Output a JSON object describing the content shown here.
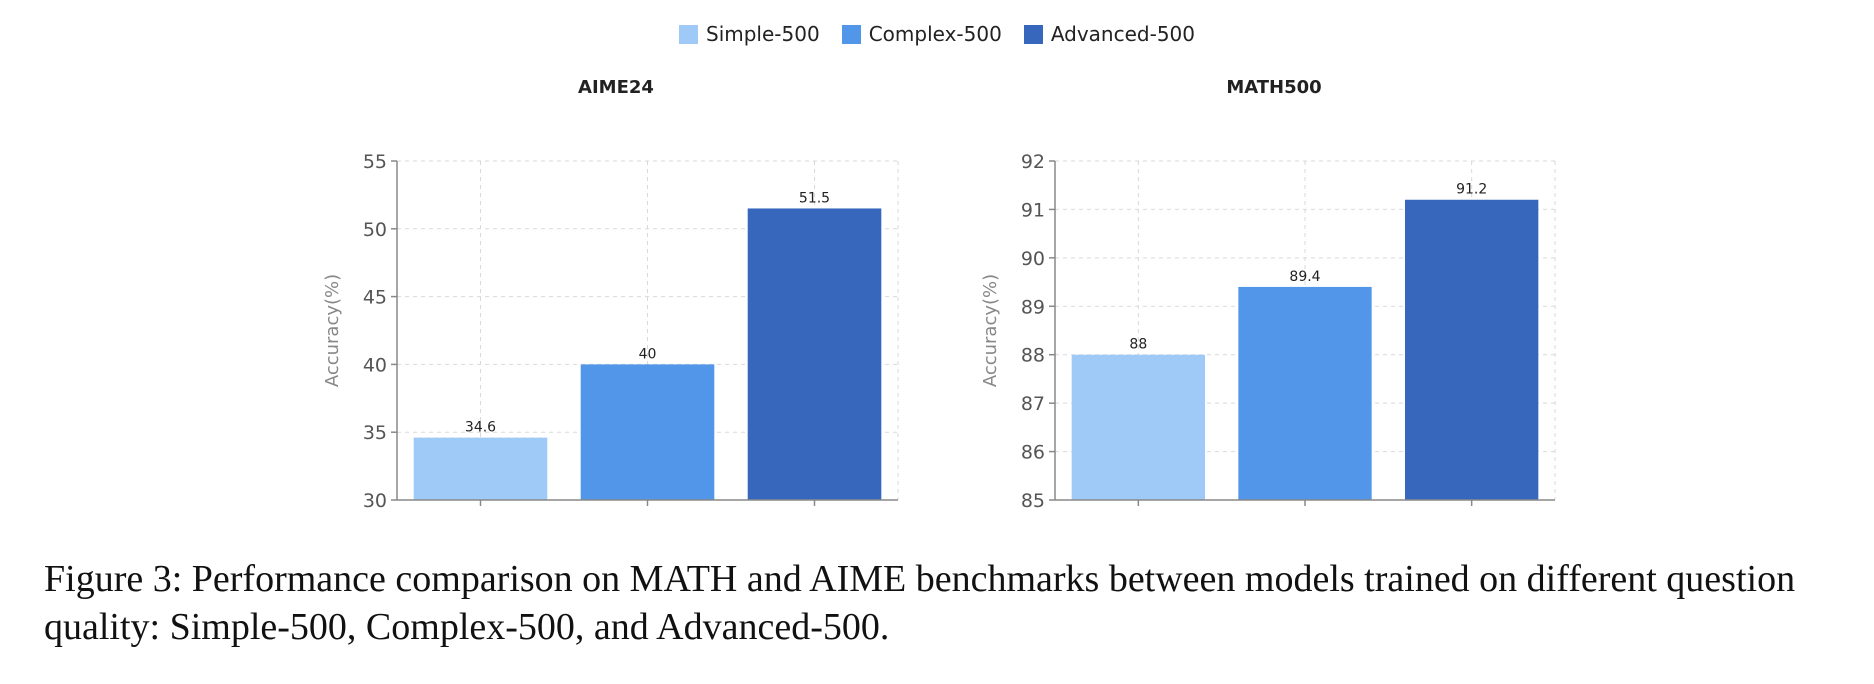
{
  "legend": {
    "items": [
      {
        "label": "Simple-500",
        "color": "#9fc9f6"
      },
      {
        "label": "Complex-500",
        "color": "#5196e9"
      },
      {
        "label": "Advanced-500",
        "color": "#3767bd"
      }
    ]
  },
  "chart_data": [
    {
      "type": "bar",
      "title": "AIME24",
      "ylabel": "Accuracy(%)",
      "xlabel": "",
      "ylim": [
        30,
        55
      ],
      "yticks": [
        30,
        35,
        40,
        45,
        50,
        55
      ],
      "grid": true,
      "categories": [
        "Simple-500",
        "Complex-500",
        "Advanced-500"
      ],
      "values": [
        34.6,
        40,
        51.5
      ],
      "value_labels": [
        "34.6",
        "40",
        "51.5"
      ]
    },
    {
      "type": "bar",
      "title": "MATH500",
      "ylabel": "Accuracy(%)",
      "xlabel": "",
      "ylim": [
        85,
        92
      ],
      "yticks": [
        85,
        86,
        87,
        88,
        89,
        90,
        91,
        92
      ],
      "grid": true,
      "categories": [
        "Simple-500",
        "Complex-500",
        "Advanced-500"
      ],
      "values": [
        88,
        89.4,
        91.2
      ],
      "value_labels": [
        "88",
        "89.4",
        "91.2"
      ]
    }
  ],
  "caption": "Figure 3: Performance comparison on MATH and AIME benchmarks between models trained on different question quality: Simple-500, Complex-500, and Advanced-500."
}
